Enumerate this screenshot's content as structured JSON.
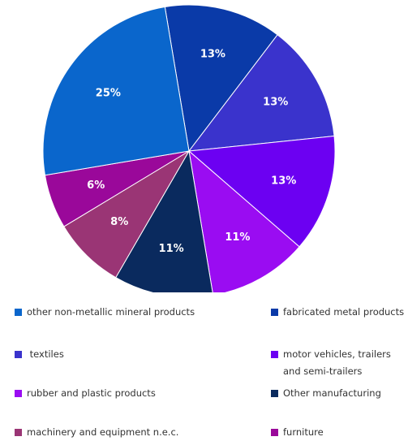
{
  "chart_data": {
    "type": "pie",
    "slices": [
      {
        "label": "fabricated metal products",
        "value": 13,
        "display": "13%",
        "color": "#0a3aa8"
      },
      {
        "label": "textiles",
        "value": 13,
        "display": "13%",
        "color": "#3a33cc"
      },
      {
        "label": "motor vehicles, trailers and semi-trailers",
        "value": 13,
        "display": "13%",
        "color": "#6c00f2"
      },
      {
        "label": "rubber and plastic products",
        "value": 11,
        "display": "11%",
        "color": "#9a0cf2"
      },
      {
        "label": "Other manufacturing",
        "value": 11,
        "display": "11%",
        "color": "#0a2a5e"
      },
      {
        "label": "machinery and equipment n.e.c.",
        "value": 8,
        "display": "8%",
        "color": "#9a3575"
      },
      {
        "label": "furniture",
        "value": 6,
        "display": "6%",
        "color": "#9a089a"
      },
      {
        "label": "other non-metallic mineral products",
        "value": 25,
        "display": "25%",
        "color": "#0a66cc"
      }
    ]
  },
  "legend": {
    "items": [
      {
        "label": "other non-metallic mineral products",
        "color": "#0a66cc"
      },
      {
        "label": "fabricated metal products",
        "color": "#0a3aa8"
      },
      {
        "label": " textiles",
        "color": "#3a33cc"
      },
      {
        "label": "motor vehicles, trailers and semi-trailers",
        "color": "#6c00f2"
      },
      {
        "label": "rubber and plastic products",
        "color": "#9a0cf2"
      },
      {
        "label": "Other manufacturing",
        "color": "#0a2a5e"
      },
      {
        "label": "machinery and equipment n.e.c.",
        "color": "#9a3575"
      },
      {
        "label": "furniture",
        "color": "#9a089a"
      }
    ]
  }
}
